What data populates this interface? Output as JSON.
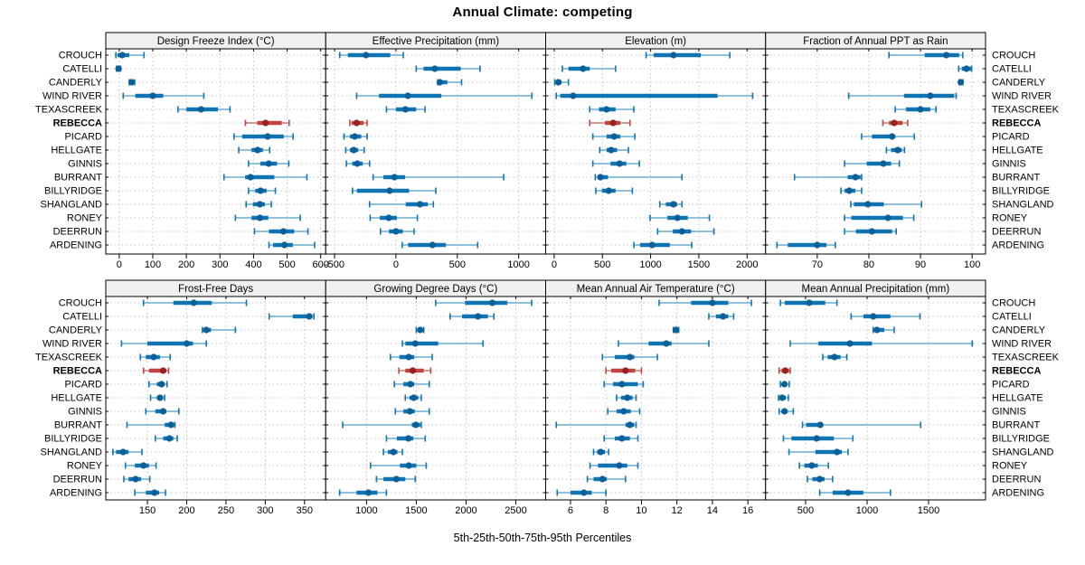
{
  "colors": {
    "series_main": "#1074b2",
    "series_light": "#8fc1dd",
    "series_dot": "#0d6097",
    "highlight_main": "#c0443f",
    "highlight_light": "#d99a97",
    "highlight_dot": "#9c2020",
    "header_bg": "#f0f0f0",
    "frame": "#000000",
    "grid": "#c3c3c3"
  },
  "chart_data": {
    "type": "scatter",
    "mark": "percentile interval: light whisker 5th-95th with end caps, thick bar 25th-75th, filled median dot",
    "title": "Annual Climate: competing",
    "caption": "5th-25th-50th-75th-95th Percentiles",
    "legend": "none",
    "grid": "dotted gray at x ticks and at each site row",
    "percentiles": [
      5,
      25,
      50,
      75,
      95
    ],
    "highlighted_site": "REBECCA",
    "sites": [
      "CROUCH",
      "CATELLI",
      "CANDERLY",
      "WIND RIVER",
      "TEXASCREEK",
      "REBECCA",
      "PICARD",
      "HELLGATE",
      "GINNIS",
      "BURRANT",
      "BILLYRIDGE",
      "SHANGLAND",
      "RONEY",
      "DEERRUN",
      "ARDENING"
    ],
    "panels": [
      {
        "title": "Design Freeze Index (°C)",
        "xlim": [
          -40,
          615
        ],
        "ticks": [
          0,
          100,
          200,
          300,
          400,
          500,
          600
        ],
        "values": [
          [
            -10,
            -5,
            9,
            30,
            74
          ],
          [
            -8,
            -5,
            -2,
            1,
            4
          ],
          [
            30,
            33,
            37,
            41,
            46
          ],
          [
            12,
            48,
            100,
            131,
            252
          ],
          [
            175,
            200,
            244,
            294,
            330
          ],
          [
            376,
            411,
            436,
            484,
            506
          ],
          [
            342,
            366,
            442,
            490,
            518
          ],
          [
            356,
            394,
            412,
            428,
            448
          ],
          [
            385,
            420,
            445,
            470,
            505
          ],
          [
            312,
            375,
            391,
            462,
            559
          ],
          [
            385,
            405,
            421,
            439,
            465
          ],
          [
            378,
            398,
            419,
            434,
            453
          ],
          [
            346,
            394,
            419,
            444,
            539
          ],
          [
            403,
            446,
            489,
            521,
            562
          ],
          [
            446,
            458,
            492,
            517,
            582
          ]
        ]
      },
      {
        "title": "Effective Precipitation (mm)",
        "xlim": [
          -572,
          1220
        ],
        "ticks": [
          -500,
          0,
          500,
          1000
        ],
        "values": [
          [
            -458,
            -392,
            -244,
            -46,
            60
          ],
          [
            165,
            225,
            317,
            528,
            685
          ],
          [
            341,
            348,
            358,
            419,
            535
          ],
          [
            -320,
            -138,
            97,
            370,
            1108
          ],
          [
            -77,
            0,
            78,
            165,
            237
          ],
          [
            -375,
            -360,
            -320,
            -264,
            -235
          ],
          [
            -423,
            -375,
            -336,
            -283,
            -235
          ],
          [
            -409,
            -375,
            -344,
            -307,
            -259
          ],
          [
            -404,
            -356,
            -315,
            -271,
            -215
          ],
          [
            -186,
            -102,
            -12,
            75,
            878
          ],
          [
            -354,
            -318,
            -51,
            107,
            325
          ],
          [
            -215,
            80,
            196,
            260,
            305
          ],
          [
            -210,
            -131,
            -58,
            7,
            175
          ],
          [
            -126,
            -58,
            0,
            56,
            148
          ],
          [
            51,
            99,
            298,
            407,
            666
          ]
        ]
      },
      {
        "title": "Elevation (m)",
        "xlim": [
          -88,
          2192
        ],
        "ticks": [
          0,
          500,
          1000,
          1500,
          2000
        ],
        "values": [
          [
            953,
            1032,
            1237,
            1521,
            1821
          ],
          [
            85,
            148,
            300,
            369,
            637
          ],
          [
            6,
            16,
            44,
            76,
            148
          ],
          [
            22,
            63,
            196,
            1694,
            2057
          ],
          [
            369,
            464,
            543,
            637,
            826
          ],
          [
            369,
            527,
            612,
            685,
            786
          ],
          [
            401,
            543,
            621,
            685,
            836
          ],
          [
            473,
            543,
            590,
            653,
            770
          ],
          [
            401,
            584,
            678,
            748,
            883
          ],
          [
            426,
            448,
            480,
            558,
            1325
          ],
          [
            432,
            495,
            565,
            637,
            811
          ],
          [
            1095,
            1158,
            1237,
            1275,
            1325
          ],
          [
            994,
            1174,
            1278,
            1385,
            1609
          ],
          [
            1073,
            1230,
            1325,
            1420,
            1656
          ],
          [
            827,
            890,
            1016,
            1199,
            1426
          ]
        ]
      },
      {
        "title": "Fraction of Annual PPT as Rain",
        "xlim": [
          60,
          102.6
        ],
        "ticks": [
          70,
          80,
          90,
          100
        ],
        "values": [
          [
            83.9,
            90.8,
            95,
            97.5,
            98.2
          ],
          [
            97.4,
            98,
            98.9,
            99.8,
            99.9
          ],
          [
            97.5,
            97.7,
            97.8,
            98,
            98.2
          ],
          [
            76.1,
            86.8,
            91.9,
            96.5,
            96.9
          ],
          [
            85.1,
            87.2,
            90,
            91.9,
            93
          ],
          [
            82.7,
            83.9,
            84.9,
            86.5,
            87.5
          ],
          [
            78.6,
            80.6,
            84.5,
            85.1,
            88.8
          ],
          [
            83.4,
            84.3,
            85.6,
            86.4,
            86.9
          ],
          [
            75.3,
            79.6,
            82.8,
            84.3,
            85.9
          ],
          [
            65.6,
            75.9,
            77.4,
            78.4,
            78.6
          ],
          [
            74.6,
            75.3,
            76.2,
            77.4,
            78.6
          ],
          [
            76.5,
            77.1,
            79.8,
            82.9,
            90.2
          ],
          [
            75.3,
            76.6,
            83.7,
            86.6,
            88.7
          ],
          [
            75.3,
            77.5,
            80.6,
            84.5,
            85.3
          ],
          [
            62.2,
            64.3,
            70,
            71.8,
            73.5
          ]
        ]
      },
      {
        "title": "Frost-Free Days",
        "xlim": [
          97,
          377
        ],
        "ticks": [
          150,
          200,
          250,
          300,
          350
        ],
        "values": [
          [
            145,
            183,
            209,
            232,
            276
          ],
          [
            305,
            335,
            356,
            360,
            362
          ],
          [
            220,
            221,
            225,
            231,
            262
          ],
          [
            117,
            150,
            200,
            208,
            225
          ],
          [
            141,
            148,
            158,
            166,
            179
          ],
          [
            145,
            152,
            170,
            174,
            177
          ],
          [
            152,
            162,
            168,
            172,
            175
          ],
          [
            154,
            162,
            166,
            170,
            172
          ],
          [
            148,
            160,
            170,
            174,
            190
          ],
          [
            124,
            172,
            180,
            184,
            185
          ],
          [
            160,
            170,
            178,
            183,
            188
          ],
          [
            106,
            110,
            119,
            126,
            143
          ],
          [
            122,
            134,
            145,
            152,
            161
          ],
          [
            120,
            126,
            135,
            142,
            153
          ],
          [
            134,
            148,
            159,
            165,
            173
          ]
        ]
      },
      {
        "title": "Growing Degree Days (°C)",
        "xlim": [
          590,
          2800
        ],
        "ticks": [
          1000,
          1500,
          2000,
          2500
        ],
        "values": [
          [
            1695,
            1990,
            2265,
            2415,
            2660
          ],
          [
            1840,
            1960,
            2120,
            2220,
            2280
          ],
          [
            1500,
            1515,
            1540,
            1560,
            1575
          ],
          [
            1360,
            1390,
            1490,
            1720,
            2170
          ],
          [
            1240,
            1330,
            1425,
            1480,
            1660
          ],
          [
            1325,
            1390,
            1465,
            1575,
            1645
          ],
          [
            1280,
            1370,
            1440,
            1480,
            1630
          ],
          [
            1390,
            1430,
            1475,
            1520,
            1550
          ],
          [
            1290,
            1370,
            1435,
            1485,
            1630
          ],
          [
            760,
            1455,
            1495,
            1540,
            1550
          ],
          [
            1200,
            1305,
            1420,
            1470,
            1590
          ],
          [
            1170,
            1215,
            1270,
            1310,
            1360
          ],
          [
            1040,
            1335,
            1425,
            1500,
            1600
          ],
          [
            1100,
            1170,
            1300,
            1390,
            1490
          ],
          [
            730,
            900,
            1020,
            1110,
            1200
          ]
        ]
      },
      {
        "title": "Mean Annual Air Temperature (°C)",
        "xlim": [
          4.6,
          17
        ],
        "ticks": [
          6,
          8,
          10,
          12,
          14,
          16
        ],
        "values": [
          [
            11,
            12.8,
            14,
            14.9,
            16.2
          ],
          [
            13.8,
            14.2,
            14.6,
            14.9,
            15.2
          ],
          [
            11.8,
            11.9,
            11.95,
            12,
            12.1
          ],
          [
            8.7,
            10.4,
            11.4,
            11.7,
            13.8
          ],
          [
            7.8,
            8.5,
            9.35,
            9.6,
            10.9
          ],
          [
            8,
            8.3,
            9.1,
            9.65,
            10
          ],
          [
            7.9,
            8.4,
            8.9,
            9.8,
            10.1
          ],
          [
            8.6,
            8.85,
            9.2,
            9.5,
            9.7
          ],
          [
            8.1,
            8.6,
            9,
            9.4,
            9.9
          ],
          [
            5.2,
            9.1,
            9.35,
            9.6,
            9.7
          ],
          [
            7.9,
            8.5,
            8.9,
            9.35,
            9.8
          ],
          [
            7.3,
            7.5,
            7.7,
            7.95,
            8.15
          ],
          [
            7.1,
            7.55,
            8.75,
            9.2,
            9.8
          ],
          [
            6.95,
            7.3,
            7.8,
            8.05,
            9.1
          ],
          [
            5.25,
            6,
            6.75,
            7.2,
            8
          ]
        ]
      },
      {
        "title": "Mean Annual Precipitation (mm)",
        "xlim": [
          175,
          1963
        ],
        "ticks": [
          500,
          1000,
          1500
        ],
        "values": [
          [
            295,
            330,
            530,
            660,
            755
          ],
          [
            870,
            970,
            1050,
            1190,
            1430
          ],
          [
            1050,
            1060,
            1080,
            1140,
            1220
          ],
          [
            375,
            605,
            860,
            1040,
            1855
          ],
          [
            640,
            680,
            735,
            785,
            835
          ],
          [
            285,
            305,
            335,
            365,
            375
          ],
          [
            295,
            310,
            328,
            350,
            367
          ],
          [
            280,
            295,
            310,
            340,
            360
          ],
          [
            285,
            305,
            328,
            355,
            400
          ],
          [
            475,
            505,
            620,
            630,
            1435
          ],
          [
            320,
            385,
            590,
            730,
            885
          ],
          [
            365,
            580,
            755,
            795,
            845
          ],
          [
            450,
            490,
            550,
            600,
            685
          ],
          [
            515,
            555,
            615,
            655,
            720
          ],
          [
            615,
            720,
            845,
            970,
            1190
          ]
        ]
      }
    ]
  }
}
